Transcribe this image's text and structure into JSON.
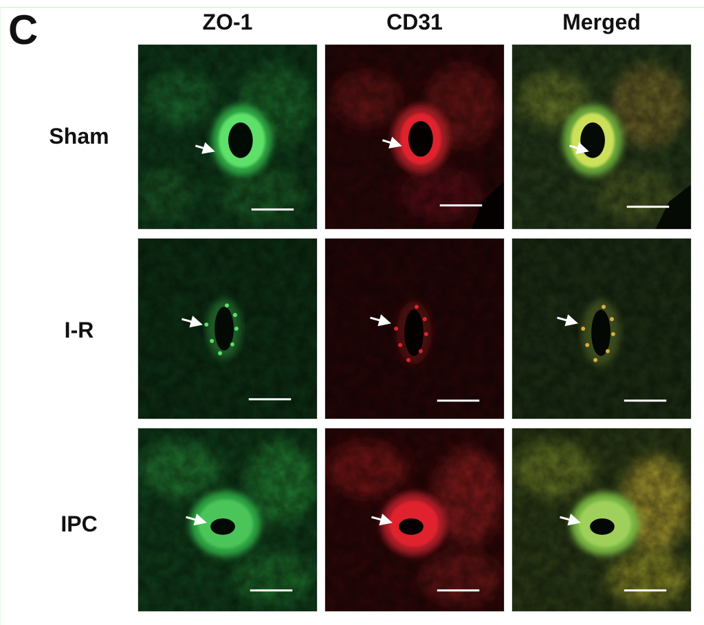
{
  "figure": {
    "panel_letter": "C",
    "columns": [
      {
        "label": "ZO-1",
        "channel": "green",
        "color": "#38c84a"
      },
      {
        "label": "CD31",
        "channel": "red",
        "color": "#e0242e"
      },
      {
        "label": "Merged",
        "channel": "merged",
        "color": "#cfd13a"
      }
    ],
    "rows": [
      {
        "label": "Sham"
      },
      {
        "label": "I-R"
      },
      {
        "label": "IPC"
      }
    ]
  }
}
